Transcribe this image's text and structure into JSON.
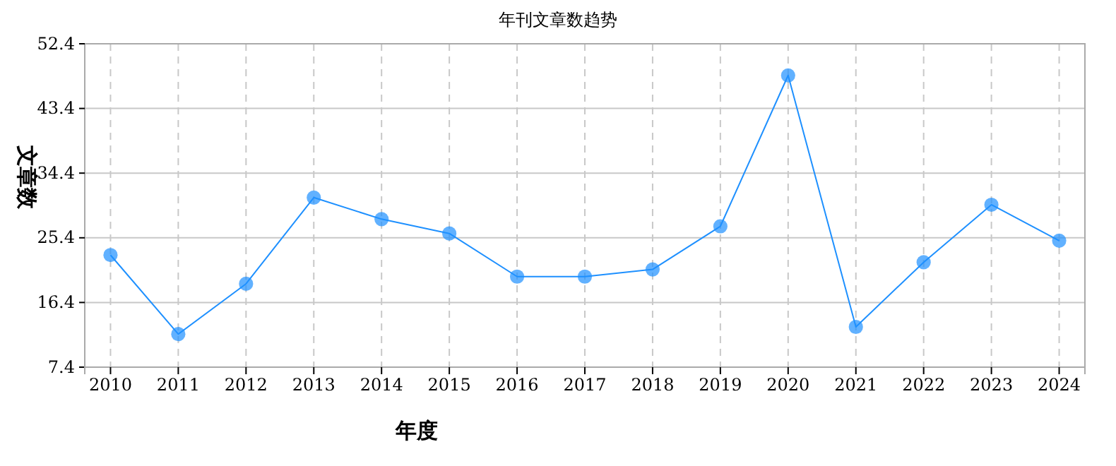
{
  "chart_data": {
    "type": "line",
    "title": "年刊文章数趋势",
    "xlabel": "年度",
    "ylabel": "文章数",
    "categories": [
      "2010",
      "2011",
      "2012",
      "2013",
      "2014",
      "2015",
      "2016",
      "2017",
      "2018",
      "2019",
      "2020",
      "2021",
      "2022",
      "2023",
      "2024"
    ],
    "series": [
      {
        "color": "#1e90ff",
        "values": [
          23,
          12,
          19,
          31,
          28,
          26,
          20,
          20,
          21,
          27,
          48,
          13,
          22,
          30,
          25
        ]
      }
    ],
    "ylim": [
      7.4,
      52.4
    ],
    "yticks": [
      7.4,
      16.4,
      25.4,
      34.4,
      43.4,
      52.4
    ],
    "grid": true,
    "marker": "circle",
    "line_style": "solid"
  }
}
